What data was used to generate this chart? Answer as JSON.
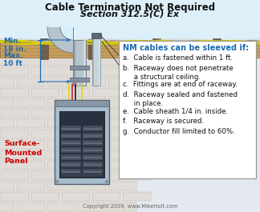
{
  "title_line1": "Cable Termination Not Required",
  "title_line2": "Section 312.5(C) Ex",
  "title_fontsize": 8.5,
  "title_italic_fontsize": 8.0,
  "bg_color": "#d8eef8",
  "ceiling_bg": "#ddf0fa",
  "wood_color": "#c8a060",
  "wood_edge": "#8B6020",
  "wood_grain": "#a07030",
  "brick_bg": "#e8e5e0",
  "brick_face": "#e0dcd8",
  "brick_edge": "#b8b0a8",
  "left_label_color": "#1a6bb5",
  "left_label_text": [
    "Min.",
    "18 in.",
    "Max.",
    "10 ft"
  ],
  "red_label_color": "#cc0000",
  "red_label_text": [
    "Surface-",
    "Mounted",
    "Panel"
  ],
  "box_title": "NM cables can be sleeved if:",
  "box_title_color": "#1a6bb5",
  "box_items": [
    "a.  Cable is fastened within 1 ft.",
    "b.  Raceway does not penetrate\n     a structural ceiling.",
    "c.  Fittings are at end of raceway.",
    "d.  Raceway sealed and fastened\n     in place.",
    "e.  Cable sheath 1/4 in. inside.",
    "f.   Raceway is secured.",
    "g.  Conductor fill limited to 60%."
  ],
  "box_item_color": "#111111",
  "box_bg": "#ffffff",
  "box_border": "#999999",
  "copyright_text": "Copyright 2009, www.MikeHolt.com",
  "copyright_color": "#666666",
  "panel_outer_color": "#a8bece",
  "panel_inner_color": "#2a3040",
  "conduit_color": "#b8c4cc",
  "conduit_edge": "#708090",
  "conduit_dark": "#7a8898",
  "conduit_light": "#d8e4ec",
  "wire_yellow": "#e0d800",
  "wire_yellow2": "#c8c400",
  "wire_gray": "#b0b8c0",
  "wire_red": "#cc2020",
  "wire_black": "#181818",
  "wire_white": "#d8d8d8",
  "clamp_color": "#8090a0",
  "fitting_color": "#5a6878",
  "pointer_line_color": "#444444"
}
